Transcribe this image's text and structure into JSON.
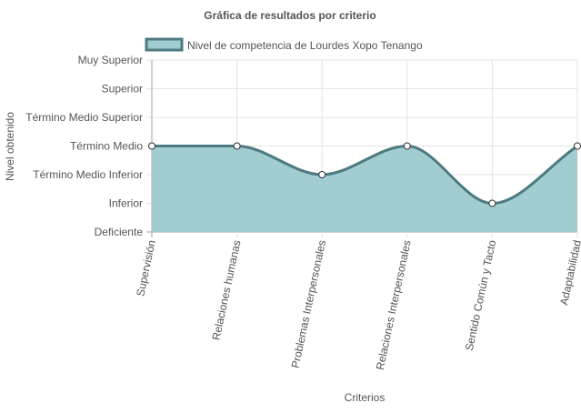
{
  "chart_data": {
    "type": "area",
    "title": "Gráfica de resultados por criterio",
    "xlabel": "Criterios",
    "ylabel": "Nivel obtenido",
    "categories": [
      "Supervisión",
      "Relaciones humanas",
      "Problemas Interpersonales",
      "Relaciones Interpersonales",
      "Sentido Común y Tacto",
      "Adaptabilidad"
    ],
    "y_levels": [
      "Deficiente",
      "Inferior",
      "Término Medio Inferior",
      "Término Medio",
      "Término Medio Superior",
      "Superior",
      "Muy Superior"
    ],
    "ylim": [
      0,
      6
    ],
    "grid": true,
    "legend_position": "top",
    "series": [
      {
        "name": "Nivel de competencia de Lourdes Xopo Tenango",
        "values": [
          3,
          3,
          2,
          3,
          1,
          3
        ],
        "value_labels": [
          "Término Medio",
          "Término Medio",
          "Término Medio Inferior",
          "Término Medio",
          "Inferior",
          "Término Medio"
        ],
        "line_color": "#4d7a80",
        "fill_color": "#a1cdd1"
      }
    ]
  },
  "colors": {
    "grid": "#e3e3e3",
    "axis": "#a0a0a0",
    "text": "#555555",
    "title": "#555555",
    "point_fill": "#ffffff"
  }
}
